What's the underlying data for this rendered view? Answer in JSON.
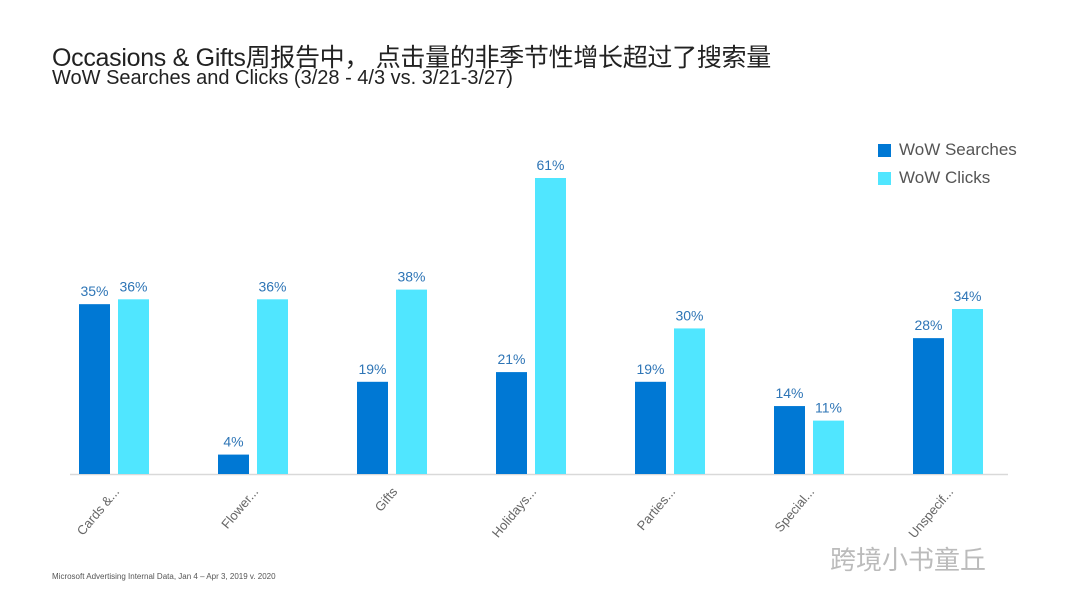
{
  "header": {
    "title": "Occasions & Gifts周报告中， 点击量的非季节性增长超过了搜索量",
    "subtitle": "WoW Searches and Clicks (3/28 - 4/3 vs. 3/21-3/27)"
  },
  "footnote": "Microsoft Advertising Internal Data, Jan 4 – Apr 3, 2019 v. 2020",
  "watermark": "跨境小书童丘",
  "chart_data": {
    "type": "bar",
    "title": "WoW Searches and Clicks (3/28 - 4/3 vs. 3/21-3/27)",
    "categories": [
      "Cards &...",
      "Flower...",
      "Gifts",
      "Holidays...",
      "Parties...",
      "Special...",
      "Unspecif..."
    ],
    "series": [
      {
        "name": "WoW Searches",
        "color": "#0078d4",
        "values": [
          35,
          4,
          19,
          21,
          19,
          14,
          28
        ]
      },
      {
        "name": "WoW Clicks",
        "color": "#50e6ff",
        "values": [
          36,
          36,
          38,
          61,
          30,
          11,
          34
        ]
      }
    ],
    "ylim": [
      0,
      61
    ],
    "value_suffix": "%",
    "legend": "top-right",
    "grid": false
  }
}
